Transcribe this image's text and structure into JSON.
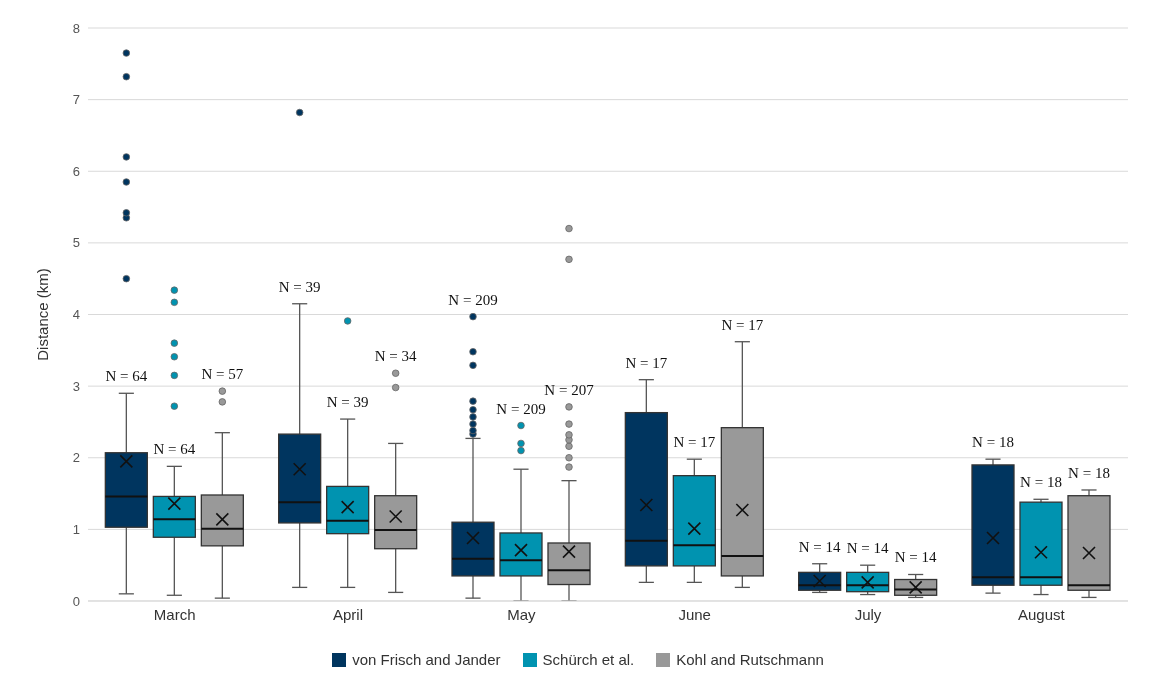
{
  "chart_data": {
    "type": "box",
    "ylabel": "Distance (km)",
    "categories": [
      "March",
      "April",
      "May",
      "June",
      "July",
      "August"
    ],
    "ylim": [
      0,
      8
    ],
    "yticks": [
      0,
      1,
      2,
      3,
      4,
      5,
      6,
      7,
      8
    ],
    "grid": "y",
    "legend": "bottom",
    "marker": "cross",
    "series": [
      {
        "name": "von Frisch and Jander",
        "color": "#00355f",
        "value_labels": [
          "N = 64",
          "N = 39",
          "N = 209",
          "N = 17",
          "N = 14",
          "N = 18"
        ],
        "boxes": [
          {
            "low": 0.1,
            "q1": 1.03,
            "median": 1.46,
            "q3": 2.07,
            "high": 2.9,
            "mean": 1.95,
            "outliers": [
              4.5,
              5.35,
              5.42,
              5.85,
              6.2,
              7.32,
              7.65
            ]
          },
          {
            "low": 0.19,
            "q1": 1.09,
            "median": 1.38,
            "q3": 2.33,
            "high": 4.15,
            "mean": 1.84,
            "outliers": [
              6.82
            ]
          },
          {
            "low": 0.04,
            "q1": 0.35,
            "median": 0.59,
            "q3": 1.1,
            "high": 2.27,
            "mean": 0.88,
            "outliers": [
              2.33,
              2.38,
              2.47,
              2.57,
              2.67,
              2.79,
              3.29,
              3.48,
              3.97
            ]
          },
          {
            "low": 0.26,
            "q1": 0.49,
            "median": 0.84,
            "q3": 2.63,
            "high": 3.09,
            "mean": 1.34
          },
          {
            "low": 0.12,
            "q1": 0.15,
            "median": 0.22,
            "q3": 0.4,
            "high": 0.52,
            "mean": 0.28
          },
          {
            "low": 0.11,
            "q1": 0.22,
            "median": 0.33,
            "q3": 1.9,
            "high": 1.98,
            "mean": 0.88
          }
        ]
      },
      {
        "name": "Schürch et al.",
        "color": "#0093b0",
        "value_labels": [
          "N = 64",
          "N = 39",
          "N = 209",
          "N = 17",
          "N = 14",
          "N = 18"
        ],
        "boxes": [
          {
            "low": 0.08,
            "q1": 0.89,
            "median": 1.14,
            "q3": 1.46,
            "high": 1.88,
            "mean": 1.36,
            "outliers": [
              2.72,
              3.15,
              3.41,
              3.6,
              4.17,
              4.34
            ]
          },
          {
            "low": 0.19,
            "q1": 0.94,
            "median": 1.12,
            "q3": 1.6,
            "high": 2.54,
            "mean": 1.31,
            "outliers": [
              3.91
            ]
          },
          {
            "low": 0,
            "q1": 0.35,
            "median": 0.57,
            "q3": 0.95,
            "high": 1.84,
            "mean": 0.71,
            "outliers": [
              2.1,
              2.2,
              2.45
            ]
          },
          {
            "low": 0.26,
            "q1": 0.49,
            "median": 0.78,
            "q3": 1.75,
            "high": 1.98,
            "mean": 1.01
          },
          {
            "low": 0.09,
            "q1": 0.13,
            "median": 0.22,
            "q3": 0.4,
            "high": 0.5,
            "mean": 0.26
          },
          {
            "low": 0.09,
            "q1": 0.22,
            "median": 0.33,
            "q3": 1.38,
            "high": 1.42,
            "mean": 0.68
          }
        ]
      },
      {
        "name": "Kohl and Rutschmann",
        "color": "#999999",
        "value_labels": [
          "N = 57",
          "N = 34",
          "N = 207",
          "N = 17",
          "N = 14",
          "N = 18"
        ],
        "boxes": [
          {
            "low": 0.04,
            "q1": 0.77,
            "median": 1.01,
            "q3": 1.48,
            "high": 2.35,
            "mean": 1.14,
            "outliers": [
              2.78,
              2.93
            ]
          },
          {
            "low": 0.12,
            "q1": 0.73,
            "median": 0.99,
            "q3": 1.47,
            "high": 2.2,
            "mean": 1.18,
            "outliers": [
              2.98,
              3.18
            ]
          },
          {
            "low": 0,
            "q1": 0.23,
            "median": 0.43,
            "q3": 0.81,
            "high": 1.68,
            "mean": 0.69,
            "outliers": [
              1.87,
              2.0,
              2.16,
              2.25,
              2.32,
              2.47,
              2.71,
              4.77,
              5.2
            ]
          },
          {
            "low": 0.19,
            "q1": 0.35,
            "median": 0.63,
            "q3": 2.42,
            "high": 3.62,
            "mean": 1.27
          },
          {
            "low": 0.05,
            "q1": 0.08,
            "median": 0.16,
            "q3": 0.3,
            "high": 0.37,
            "mean": 0.19
          },
          {
            "low": 0.05,
            "q1": 0.15,
            "median": 0.22,
            "q3": 1.47,
            "high": 1.55,
            "mean": 0.67
          }
        ]
      }
    ]
  }
}
